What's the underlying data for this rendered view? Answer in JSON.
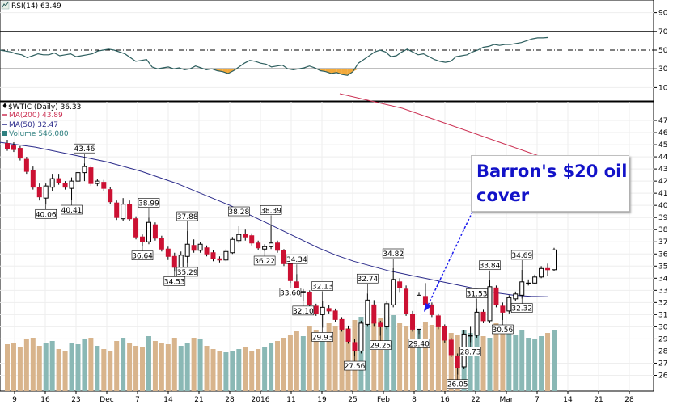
{
  "rsi": {
    "label": "RSI(14) 63.49",
    "ticks": [
      90,
      70,
      50,
      30,
      10
    ],
    "ylim": [
      0,
      100
    ],
    "overbought": 70,
    "oversold": 30,
    "midline": 50,
    "values": [
      50,
      49,
      48,
      46,
      45,
      42,
      44,
      46,
      45,
      45,
      47,
      44,
      45,
      46,
      43,
      44,
      45,
      46,
      49,
      50,
      51,
      50,
      48,
      46,
      42,
      38,
      39,
      40,
      32,
      30,
      31,
      32,
      30,
      31,
      29,
      30,
      33,
      31,
      29,
      30,
      28,
      27,
      25,
      28,
      32,
      36,
      39,
      38,
      36,
      35,
      32,
      33,
      34,
      30,
      29,
      30,
      31,
      33,
      31,
      28,
      27,
      25,
      26,
      24,
      23,
      27,
      36,
      40,
      44,
      48,
      50,
      48,
      43,
      44,
      48,
      51,
      48,
      45,
      46,
      43,
      40,
      38,
      37,
      38,
      43,
      44,
      45,
      48,
      50,
      53,
      54,
      56,
      55,
      56,
      56,
      57,
      58,
      60,
      62,
      63,
      63,
      63.49
    ],
    "colors": {
      "line": "#2e5f5f",
      "fill_below_30": "#f2a93b"
    }
  },
  "price_panel": {
    "legend_title": "$WTIC (Daily) 36.33",
    "legend_ma200": "MA(200) 43.89",
    "legend_ma50": "MA(50) 32.47",
    "legend_volume": "Volume 546,080",
    "ticks": [
      47,
      46,
      45,
      44,
      43,
      42,
      41,
      40,
      39,
      38,
      37,
      36,
      35,
      34,
      33,
      32,
      31,
      30,
      29,
      28,
      27,
      26
    ],
    "ylim": [
      25.5,
      48.0
    ],
    "colors": {
      "up": "#ffffff",
      "down": "#cc1133",
      "ma200": "#cc3355",
      "ma50": "#2a2a8a",
      "vol_up": "#8ab8b5",
      "vol_down": "#d8b48c"
    }
  },
  "x_axis": {
    "labels": [
      "9",
      "16",
      "23",
      "Dec",
      "7",
      "14",
      "21",
      "28",
      "2016",
      "11",
      "19",
      "25",
      "Feb",
      "8",
      "16",
      "22",
      "Mar",
      "7",
      "14",
      "21",
      "28"
    ]
  },
  "annotation": {
    "line1": "Barron's $20 oil",
    "line2": "cover"
  },
  "chart_data": {
    "type": "candlestick",
    "title": "$WTIC (Daily) 36.33",
    "candles": [
      {
        "o": 45.1,
        "h": 45.4,
        "l": 44.5,
        "c": 44.7
      },
      {
        "o": 44.9,
        "h": 45.2,
        "l": 44.4,
        "c": 44.6
      },
      {
        "o": 44.7,
        "h": 44.9,
        "l": 43.7,
        "c": 43.9
      },
      {
        "o": 43.8,
        "h": 44.0,
        "l": 42.6,
        "c": 42.8
      },
      {
        "o": 42.9,
        "h": 43.2,
        "l": 41.3,
        "c": 41.5
      },
      {
        "o": 41.5,
        "h": 41.8,
        "l": 40.4,
        "c": 40.7
      },
      {
        "o": 40.6,
        "h": 41.8,
        "l": 40.06,
        "c": 41.6
      },
      {
        "o": 41.5,
        "h": 42.6,
        "l": 41.2,
        "c": 42.2
      },
      {
        "o": 42.2,
        "h": 42.6,
        "l": 41.7,
        "c": 41.9
      },
      {
        "o": 41.8,
        "h": 42.0,
        "l": 41.3,
        "c": 41.5
      },
      {
        "o": 41.4,
        "h": 42.3,
        "l": 40.41,
        "c": 42.0
      },
      {
        "o": 42.0,
        "h": 42.9,
        "l": 41.9,
        "c": 42.7
      },
      {
        "o": 42.7,
        "h": 43.46,
        "l": 42.0,
        "c": 43.2
      },
      {
        "o": 43.1,
        "h": 43.3,
        "l": 41.6,
        "c": 41.8
      },
      {
        "o": 41.8,
        "h": 42.2,
        "l": 41.6,
        "c": 42.0
      },
      {
        "o": 41.9,
        "h": 42.1,
        "l": 41.2,
        "c": 41.4
      },
      {
        "o": 41.3,
        "h": 41.5,
        "l": 40.1,
        "c": 40.3
      },
      {
        "o": 40.2,
        "h": 40.4,
        "l": 38.8,
        "c": 39.0
      },
      {
        "o": 38.9,
        "h": 40.6,
        "l": 38.7,
        "c": 40.1
      },
      {
        "o": 40.1,
        "h": 40.4,
        "l": 38.7,
        "c": 38.9
      },
      {
        "o": 38.9,
        "h": 39.1,
        "l": 37.2,
        "c": 37.4
      },
      {
        "o": 37.4,
        "h": 37.6,
        "l": 36.64,
        "c": 37.0
      },
      {
        "o": 37.0,
        "h": 38.99,
        "l": 36.8,
        "c": 38.6
      },
      {
        "o": 38.4,
        "h": 38.6,
        "l": 37.1,
        "c": 37.3
      },
      {
        "o": 37.3,
        "h": 37.5,
        "l": 36.2,
        "c": 36.4
      },
      {
        "o": 36.4,
        "h": 36.6,
        "l": 35.5,
        "c": 35.8
      },
      {
        "o": 35.8,
        "h": 36.1,
        "l": 34.53,
        "c": 34.9
      },
      {
        "o": 34.9,
        "h": 36.2,
        "l": 34.7,
        "c": 35.9
      },
      {
        "o": 35.8,
        "h": 37.88,
        "l": 35.29,
        "c": 36.8
      },
      {
        "o": 36.7,
        "h": 37.2,
        "l": 36.1,
        "c": 36.3
      },
      {
        "o": 36.3,
        "h": 37.0,
        "l": 36.1,
        "c": 36.8
      },
      {
        "o": 36.5,
        "h": 36.7,
        "l": 35.8,
        "c": 36.0
      },
      {
        "o": 36.1,
        "h": 36.3,
        "l": 35.4,
        "c": 35.6
      },
      {
        "o": 35.6,
        "h": 35.8,
        "l": 35.3,
        "c": 35.5
      },
      {
        "o": 35.5,
        "h": 36.4,
        "l": 35.4,
        "c": 36.2
      },
      {
        "o": 36.1,
        "h": 37.4,
        "l": 36.0,
        "c": 37.2
      },
      {
        "o": 37.1,
        "h": 38.28,
        "l": 36.9,
        "c": 37.6
      },
      {
        "o": 37.6,
        "h": 38.0,
        "l": 37.1,
        "c": 37.4
      },
      {
        "o": 37.5,
        "h": 37.7,
        "l": 36.7,
        "c": 36.9
      },
      {
        "o": 36.9,
        "h": 37.1,
        "l": 36.3,
        "c": 36.5
      },
      {
        "o": 36.4,
        "h": 36.8,
        "l": 36.22,
        "c": 36.6
      },
      {
        "o": 36.6,
        "h": 38.39,
        "l": 36.4,
        "c": 36.9
      },
      {
        "o": 36.9,
        "h": 37.1,
        "l": 36.1,
        "c": 36.3
      },
      {
        "o": 36.3,
        "h": 36.4,
        "l": 35.0,
        "c": 35.2
      },
      {
        "o": 35.2,
        "h": 35.4,
        "l": 33.6,
        "c": 33.8
      },
      {
        "o": 33.7,
        "h": 34.34,
        "l": 32.6,
        "c": 32.8
      },
      {
        "o": 32.8,
        "h": 33.1,
        "l": 32.1,
        "c": 32.9
      },
      {
        "o": 32.8,
        "h": 33.0,
        "l": 31.6,
        "c": 31.8
      },
      {
        "o": 31.7,
        "h": 31.9,
        "l": 30.9,
        "c": 31.1
      },
      {
        "o": 31.0,
        "h": 32.13,
        "l": 29.93,
        "c": 31.6
      },
      {
        "o": 31.5,
        "h": 31.8,
        "l": 31.1,
        "c": 31.3
      },
      {
        "o": 31.3,
        "h": 31.5,
        "l": 30.4,
        "c": 30.6
      },
      {
        "o": 30.6,
        "h": 30.8,
        "l": 29.6,
        "c": 29.8
      },
      {
        "o": 29.8,
        "h": 30.1,
        "l": 28.6,
        "c": 28.8
      },
      {
        "o": 28.7,
        "h": 29.0,
        "l": 27.56,
        "c": 28.0
      },
      {
        "o": 28.0,
        "h": 30.5,
        "l": 27.8,
        "c": 30.3
      },
      {
        "o": 30.2,
        "h": 32.74,
        "l": 30.0,
        "c": 32.2
      },
      {
        "o": 31.8,
        "h": 32.2,
        "l": 30.0,
        "c": 30.3
      },
      {
        "o": 30.3,
        "h": 30.5,
        "l": 29.25,
        "c": 30.0
      },
      {
        "o": 30.0,
        "h": 32.1,
        "l": 29.8,
        "c": 31.9
      },
      {
        "o": 31.8,
        "h": 34.82,
        "l": 31.6,
        "c": 33.9
      },
      {
        "o": 33.7,
        "h": 34.0,
        "l": 32.8,
        "c": 33.2
      },
      {
        "o": 33.1,
        "h": 33.4,
        "l": 30.9,
        "c": 31.1
      },
      {
        "o": 31.0,
        "h": 31.3,
        "l": 29.6,
        "c": 29.8
      },
      {
        "o": 29.8,
        "h": 32.8,
        "l": 29.4,
        "c": 32.6
      },
      {
        "o": 32.5,
        "h": 33.6,
        "l": 31.6,
        "c": 31.8
      },
      {
        "o": 31.8,
        "h": 32.0,
        "l": 30.8,
        "c": 31.0
      },
      {
        "o": 30.9,
        "h": 31.1,
        "l": 29.8,
        "c": 30.0
      },
      {
        "o": 30.0,
        "h": 30.2,
        "l": 28.7,
        "c": 28.9
      },
      {
        "o": 28.9,
        "h": 29.1,
        "l": 27.5,
        "c": 27.7
      },
      {
        "o": 27.6,
        "h": 27.8,
        "l": 26.05,
        "c": 26.6
      },
      {
        "o": 26.7,
        "h": 29.7,
        "l": 26.5,
        "c": 29.4
      },
      {
        "o": 29.3,
        "h": 30.0,
        "l": 28.73,
        "c": 29.3
      },
      {
        "o": 29.3,
        "h": 31.53,
        "l": 29.1,
        "c": 31.2
      },
      {
        "o": 31.2,
        "h": 31.4,
        "l": 30.3,
        "c": 30.5
      },
      {
        "o": 30.5,
        "h": 33.84,
        "l": 30.3,
        "c": 33.3
      },
      {
        "o": 33.2,
        "h": 33.4,
        "l": 31.6,
        "c": 31.8
      },
      {
        "o": 31.7,
        "h": 32.0,
        "l": 30.56,
        "c": 31.2
      },
      {
        "o": 31.3,
        "h": 32.6,
        "l": 31.1,
        "c": 32.4
      },
      {
        "o": 32.3,
        "h": 32.9,
        "l": 32.1,
        "c": 32.7
      },
      {
        "o": 32.6,
        "h": 34.69,
        "l": 32.32,
        "c": 33.7
      },
      {
        "o": 33.6,
        "h": 33.9,
        "l": 33.4,
        "c": 33.6
      },
      {
        "o": 33.6,
        "h": 34.3,
        "l": 33.5,
        "c": 34.1
      },
      {
        "o": 34.1,
        "h": 35.0,
        "l": 34.0,
        "c": 34.8
      },
      {
        "o": 34.8,
        "h": 35.2,
        "l": 34.2,
        "c": 34.7
      },
      {
        "o": 34.7,
        "h": 36.5,
        "l": 34.6,
        "c": 36.33
      }
    ],
    "volume": [
      290,
      300,
      270,
      320,
      330,
      280,
      300,
      310,
      260,
      250,
      300,
      290,
      320,
      330,
      280,
      260,
      250,
      310,
      330,
      300,
      280,
      270,
      340,
      310,
      300,
      290,
      330,
      280,
      300,
      330,
      320,
      280,
      260,
      250,
      240,
      250,
      260,
      270,
      250,
      260,
      270,
      300,
      310,
      330,
      350,
      370,
      340,
      400,
      380,
      360,
      420,
      400,
      420,
      390,
      440,
      460,
      480,
      430,
      450,
      460,
      470,
      420,
      400,
      380,
      420,
      430,
      410,
      400,
      380,
      360,
      350,
      380,
      360,
      370,
      340,
      330,
      420,
      380,
      400,
      350,
      380,
      330,
      320,
      340,
      360,
      380
    ],
    "labeled_points": [
      {
        "text": "43.46"
      },
      {
        "text": "40.06"
      },
      {
        "text": "40.41"
      },
      {
        "text": "38.99"
      },
      {
        "text": "36.64"
      },
      {
        "text": "37.88"
      },
      {
        "text": "35.29"
      },
      {
        "text": "34.53"
      },
      {
        "text": "38.28"
      },
      {
        "text": "38.39"
      },
      {
        "text": "36.22"
      },
      {
        "text": "34.34"
      },
      {
        "text": "32.10"
      },
      {
        "text": "32.13"
      },
      {
        "text": "29.93"
      },
      {
        "text": "32.74"
      },
      {
        "text": "27.56"
      },
      {
        "text": "34.82"
      },
      {
        "text": "29.25"
      },
      {
        "text": "33.60"
      },
      {
        "text": "29.40"
      },
      {
        "text": "26.05"
      },
      {
        "text": "31.53"
      },
      {
        "text": "28.73"
      },
      {
        "text": "33.84"
      },
      {
        "text": "30.56"
      },
      {
        "text": "34.69"
      },
      {
        "text": "32.32"
      }
    ],
    "ma200": [
      49.2,
      49.0,
      48.8,
      48.6,
      48.4,
      48.2,
      48.0,
      47.7,
      47.4,
      47.1,
      46.8,
      46.5,
      46.2,
      45.9,
      45.6,
      45.3,
      45.0,
      44.7,
      44.4,
      44.1,
      43.89
    ],
    "ma50": [
      45.2,
      45.0,
      44.8,
      44.5,
      44.2,
      43.9,
      43.6,
      43.2,
      42.8,
      42.3,
      41.8,
      41.2,
      40.6,
      40.0,
      39.3,
      38.6,
      37.9,
      37.2,
      36.5,
      35.9,
      35.4,
      35.0,
      34.6,
      34.3,
      34.0,
      33.7,
      33.4,
      33.1,
      32.8,
      32.6,
      32.5,
      32.47
    ]
  }
}
